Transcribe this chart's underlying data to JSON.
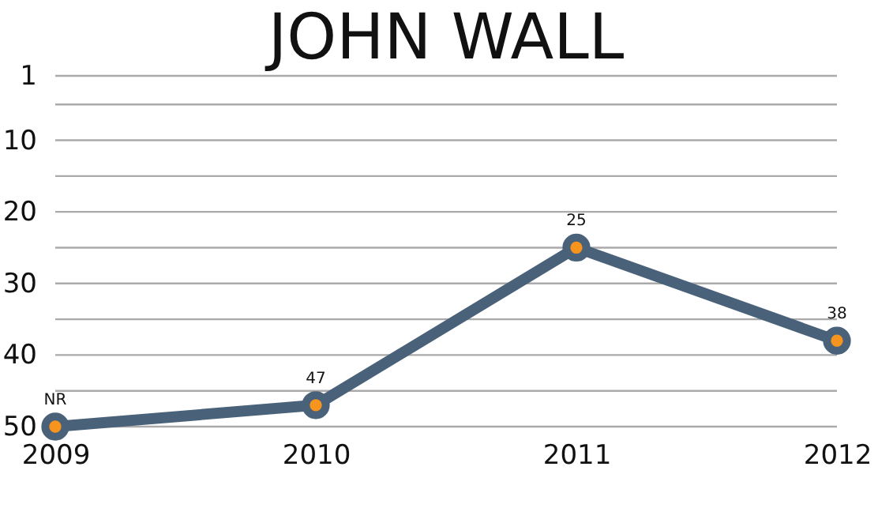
{
  "chart_data": {
    "type": "line",
    "title": "JOHN WALL",
    "categories": [
      "2009",
      "2010",
      "2011",
      "2012"
    ],
    "series": [
      {
        "color": "#4a6279",
        "values": [
          50,
          47,
          25,
          38
        ],
        "value_labels": [
          "NR",
          "47",
          "25",
          "38"
        ]
      }
    ],
    "ylim": [
      50,
      1
    ],
    "yticks": [
      1,
      {
        "value": 5,
        "label": null
      },
      10,
      {
        "value": 15,
        "label": null
      },
      20,
      {
        "value": 25,
        "label": null
      },
      30,
      {
        "value": 35,
        "label": null
      },
      40,
      {
        "value": 45,
        "label": null
      },
      50
    ],
    "grid": "y",
    "marker": "circle",
    "line_style": "solid",
    "legend": false
  }
}
